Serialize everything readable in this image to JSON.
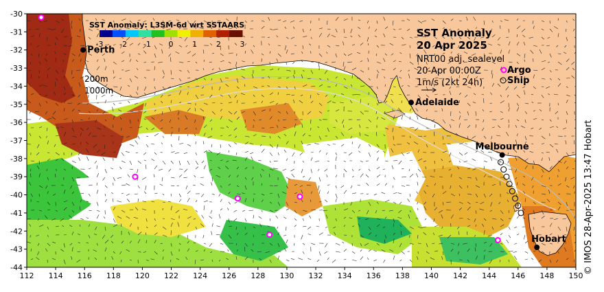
{
  "title": {
    "line1": "SST Anomaly",
    "line2": "20 Apr 2025",
    "product": "NRT00 adj. sealevel",
    "time": "20-Apr 00:00Z",
    "vector_scale": "1m/s (2kt 24h)"
  },
  "colorbar": {
    "title": "SST Anomaly: L3SM-6d wrt SSTAARS",
    "ticks": [
      "-3",
      "-2",
      "-1",
      "0",
      "1",
      "2",
      "3"
    ],
    "colors": [
      "#00008c",
      "#0050ff",
      "#00c8ff",
      "#30e0a0",
      "#20c020",
      "#a0e000",
      "#f0f000",
      "#f0b000",
      "#e06000",
      "#b02000",
      "#6a1000"
    ]
  },
  "legend": {
    "argo_label": "Argo",
    "ship_label": "Ship",
    "argo_color": "#ff00ff",
    "contour_labels": [
      "200m",
      "1000m"
    ]
  },
  "axes": {
    "x_ticks": [
      "112",
      "114",
      "116",
      "118",
      "120",
      "122",
      "124",
      "126",
      "128",
      "130",
      "132",
      "134",
      "136",
      "138",
      "140",
      "142",
      "144",
      "146",
      "148",
      "150"
    ],
    "y_ticks": [
      "-30",
      "-31",
      "-32",
      "-33",
      "-34",
      "-35",
      "-36",
      "-37",
      "-38",
      "-39",
      "-40",
      "-41",
      "-42",
      "-43",
      "-44"
    ],
    "lon_range": [
      112,
      150
    ],
    "lat_range": [
      -44,
      -30
    ]
  },
  "cities": [
    {
      "name": "Perth",
      "lon": 115.9,
      "lat": -32.0
    },
    {
      "name": "Adelaide",
      "lon": 138.6,
      "lat": -34.9
    },
    {
      "name": "Melbourne",
      "lon": 144.9,
      "lat": -37.8
    },
    {
      "name": "Hobart",
      "lon": 147.3,
      "lat": -42.9
    }
  ],
  "argo_floats": [
    {
      "lon": 113.0,
      "lat": -30.2
    },
    {
      "lon": 119.5,
      "lat": -39.0
    },
    {
      "lon": 126.6,
      "lat": -40.2
    },
    {
      "lon": 130.9,
      "lat": -40.1
    },
    {
      "lon": 128.8,
      "lat": -42.2
    },
    {
      "lon": 144.6,
      "lat": -42.5
    }
  ],
  "ship_track": [
    {
      "lon": 144.8,
      "lat": -38.2
    },
    {
      "lon": 145.0,
      "lat": -38.6
    },
    {
      "lon": 145.2,
      "lat": -39.0
    },
    {
      "lon": 145.4,
      "lat": -39.4
    },
    {
      "lon": 145.6,
      "lat": -39.8
    },
    {
      "lon": 145.8,
      "lat": -40.2
    },
    {
      "lon": 146.0,
      "lat": -40.6
    },
    {
      "lon": 146.2,
      "lat": -41.0
    }
  ],
  "credit": "© IMOS 28-Apr-2025 13:47 Hobart",
  "colors": {
    "land": "#f8c89c",
    "no_data": "#ffffff",
    "frame": "#000000"
  }
}
